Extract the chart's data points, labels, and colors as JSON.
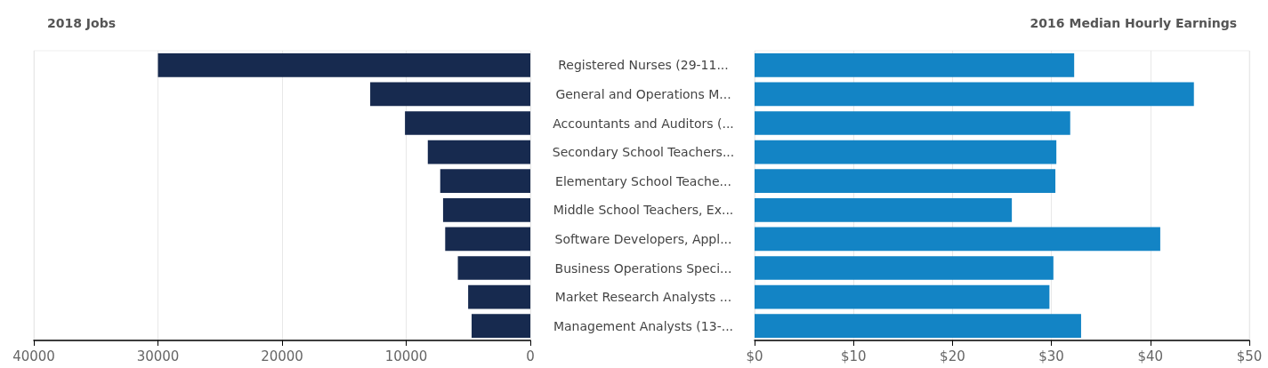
{
  "chart_data": [
    {
      "type": "bar",
      "orientation": "horizontal",
      "title": "2018 Jobs",
      "categories": [
        "Registered Nurses (29-11...",
        "General and Operations M...",
        "Accountants and Auditors (...",
        "Secondary School Teachers...",
        "Elementary School Teache...",
        "Middle School Teachers, Ex...",
        "Software Developers, Appl...",
        "Business Operations Speci...",
        "Market Research Analysts ...",
        "Management Analysts (13-..."
      ],
      "values": [
        30000,
        12900,
        10100,
        8260,
        7260,
        7030,
        6860,
        5840,
        5010,
        4730
      ],
      "color": "#172a4f",
      "xlim": [
        40000,
        0
      ],
      "xticks": [
        40000,
        30000,
        20000,
        10000,
        0
      ],
      "grid": "x"
    },
    {
      "type": "bar",
      "orientation": "horizontal",
      "title": "2016 Median Hourly Earnings",
      "categories": [
        null,
        null,
        null,
        null,
        null,
        null,
        null,
        null,
        null,
        null
      ],
      "values": [
        32.3,
        44.4,
        31.9,
        30.5,
        30.4,
        26.0,
        41.0,
        30.2,
        29.8,
        33.0
      ],
      "color": "#1384c5",
      "xlim": [
        0,
        50
      ],
      "xticks": [
        {
          "value": 0,
          "label": "$0"
        },
        {
          "value": 10,
          "label": "$10"
        },
        {
          "value": 20,
          "label": "$20"
        },
        {
          "value": 30,
          "label": "$30"
        },
        {
          "value": 40,
          "label": "$40"
        },
        {
          "value": 50,
          "label": "$50"
        }
      ],
      "grid": "x"
    }
  ]
}
